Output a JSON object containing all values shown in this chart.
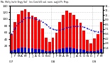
{
  "title": "Mo. Mo'ly Inv'tr Engy Val'   Inv Cont'd E.val. runn. avg'd Pr. Prop.",
  "values": [
    55,
    90,
    115,
    125,
    130,
    120,
    110,
    105,
    95,
    72,
    45,
    32,
    45,
    60,
    90,
    112,
    125,
    118,
    112,
    100,
    88,
    65,
    38,
    28,
    42,
    55,
    92
  ],
  "running_avg": [
    55,
    72,
    87,
    94,
    103,
    104,
    103,
    100,
    97,
    92,
    84,
    75,
    70,
    67,
    67,
    70,
    74,
    76,
    78,
    78,
    78,
    76,
    72,
    67,
    64,
    62,
    64
  ],
  "small_values": [
    6,
    9,
    12,
    14,
    15,
    13,
    12,
    11,
    10,
    8,
    5,
    4,
    6,
    8,
    10,
    13,
    15,
    14,
    13,
    11,
    10,
    8,
    5,
    3,
    5,
    7,
    10
  ],
  "bar_color": "#ff0000",
  "small_bar_color": "#0000cc",
  "avg_line_color": "#0000cc",
  "bg_color": "#ffffff",
  "grid_color": "#aaaaaa",
  "ylim_max": 140,
  "yticks": [
    20,
    40,
    60,
    80,
    100,
    120,
    140
  ],
  "right_ticks": [
    14,
    28,
    42,
    56,
    70,
    84,
    98,
    112,
    126,
    140
  ],
  "right_labels": [
    "1.4",
    "2.8",
    "4.2",
    "5.6",
    "7.1",
    "8.5",
    "9.9",
    "11..",
    "12..",
    "14.."
  ],
  "x_labels_row1": [
    "J",
    "F",
    "M",
    "A",
    "M",
    "J",
    "J",
    "A",
    "S",
    "O",
    "N",
    "D",
    "J",
    "F",
    "M",
    "A",
    "M",
    "J",
    "J",
    "A",
    "S",
    "O",
    "N",
    "D",
    "J",
    "F",
    "M"
  ],
  "x_labels_row2": [
    "'07",
    "",
    "",
    "",
    "",
    "",
    "",
    "",
    "",
    "",
    "",
    "",
    "'08",
    "",
    "",
    "",
    "",
    "",
    "",
    "",
    "",
    "",
    "",
    "",
    "'09",
    "",
    ""
  ],
  "year_sep": [
    11.5,
    23.5
  ],
  "n": 27
}
